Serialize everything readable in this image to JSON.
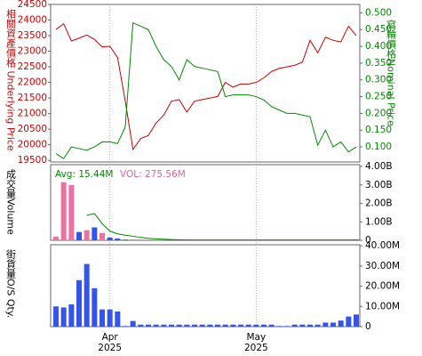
{
  "chart_data": [
    {
      "type": "line",
      "y_label": "相關資產價格 Underlying Price",
      "y2_label": "窩輪價格Nominal Price",
      "ylim": [
        19450,
        24500
      ],
      "yticks": [
        19500,
        20000,
        20500,
        21000,
        21500,
        22000,
        22500,
        23000,
        23500,
        24000,
        24500
      ],
      "y2lim": [
        0.055,
        0.525
      ],
      "y2ticks": [
        {
          "value": 0.1,
          "label": "0.100"
        },
        {
          "value": 0.15,
          "label": "0.150"
        },
        {
          "value": 0.2,
          "label": "0.200"
        },
        {
          "value": 0.25,
          "label": "0.250"
        },
        {
          "value": 0.3,
          "label": "0.300"
        },
        {
          "value": 0.35,
          "label": "0.350"
        },
        {
          "value": 0.4,
          "label": "0.400"
        },
        {
          "value": 0.45,
          "label": "0.450"
        },
        {
          "value": 0.5,
          "label": "0.500"
        }
      ],
      "ycolor": "#cc0000",
      "y2color": "#008800",
      "series": [
        {
          "color": "#cc0000",
          "values": [
            23700,
            23880,
            23330,
            23420,
            23520,
            23380,
            23140,
            23160,
            22800,
            21400,
            19850,
            20200,
            20300,
            20700,
            20950,
            21400,
            21450,
            21050,
            21400,
            21450,
            21500,
            21550,
            22000,
            21850,
            21950,
            21950,
            22000,
            22150,
            22350,
            22450,
            22500,
            22550,
            22650,
            23350,
            22950,
            23450,
            23350,
            23300,
            23800,
            23500
          ]
        },
        {
          "color": "#008800",
          "axis": "y2",
          "values": [
            0.08,
            0.065,
            0.1,
            0.095,
            0.09,
            0.1,
            0.115,
            0.115,
            0.11,
            0.16,
            0.47,
            0.46,
            0.45,
            0.4,
            0.36,
            0.34,
            0.3,
            0.36,
            0.34,
            0.335,
            0.33,
            0.325,
            0.25,
            0.255,
            0.255,
            0.255,
            0.25,
            0.24,
            0.22,
            0.21,
            0.2,
            0.2,
            0.195,
            0.19,
            0.105,
            0.15,
            0.1,
            0.115,
            0.085,
            0.1
          ]
        }
      ]
    },
    {
      "type": "bar",
      "y_label": "成交量Volume",
      "annotations": [
        {
          "text": "Avg: 15.44M",
          "color": "#008800"
        },
        {
          "text": "VOL: 275.56M",
          "color": "#e060a0"
        }
      ],
      "ylim": [
        0,
        4100000000
      ],
      "y2ticks": [
        0,
        {
          "value": 1000000000,
          "label": "1.00B"
        },
        {
          "value": 2000000000,
          "label": "2.00B"
        },
        {
          "value": 3000000000,
          "label": "3.00B"
        },
        {
          "value": 4000000000,
          "label": "4.00B"
        }
      ],
      "values": [
        200000000,
        3150000000,
        3000000000,
        450000000,
        550000000,
        700000000,
        400000000,
        150000000,
        100000000,
        40000000,
        30000000,
        20000000,
        10000000,
        10000000,
        10000000,
        10000000,
        10000000,
        10000000,
        10000000,
        10000000,
        10000000,
        10000000,
        10000000,
        10000000,
        10000000,
        10000000,
        10000000,
        10000000,
        10000000,
        10000000,
        10000000,
        10000000,
        10000000,
        10000000,
        10000000,
        10000000,
        10000000,
        10000000,
        10000000,
        50000000
      ],
      "colors": [
        "#f070a0",
        "#f070a0",
        "#f070a0",
        "#3355ee",
        "#f070a0",
        "#3355ee",
        "#f070a0",
        "#3355ee",
        "#3355ee",
        "#3355ee",
        "#3355ee",
        "#3355ee",
        "#3355ee",
        "#3355ee",
        "#3355ee",
        "#3355ee",
        "#3355ee",
        "#3355ee",
        "#3355ee",
        "#3355ee",
        "#3355ee",
        "#3355ee",
        "#3355ee",
        "#3355ee",
        "#3355ee",
        "#3355ee",
        "#3355ee",
        "#3355ee",
        "#3355ee",
        "#3355ee",
        "#3355ee",
        "#3355ee",
        "#3355ee",
        "#3355ee",
        "#3355ee",
        "#3355ee",
        "#3355ee",
        "#3355ee",
        "#3355ee",
        "#3355ee"
      ],
      "line": {
        "color": "#008800",
        "values": [
          null,
          null,
          null,
          null,
          1350000000,
          1450000000,
          900000000,
          500000000,
          350000000,
          280000000,
          220000000,
          160000000,
          110000000,
          80000000,
          60000000,
          40000000,
          30000000,
          20000000,
          20000000,
          20000000,
          20000000,
          20000000,
          20000000,
          20000000,
          20000000,
          20000000,
          20000000,
          20000000,
          20000000,
          20000000,
          20000000,
          20000000,
          20000000,
          20000000,
          20000000,
          20000000,
          20000000,
          20000000,
          20000000,
          20000000
        ]
      }
    },
    {
      "type": "bar",
      "y_label": "街貨量O/S Qty.",
      "ylim": [
        0,
        40500000
      ],
      "y2ticks": [
        0,
        {
          "value": 10000000,
          "label": "10.00M"
        },
        {
          "value": 20000000,
          "label": "20.00M"
        },
        {
          "value": 30000000,
          "label": "30.00M"
        },
        {
          "value": 40000000,
          "label": "40.00M"
        }
      ],
      "color": "#3355ee",
      "values": [
        10000000,
        9500000,
        11000000,
        23000000,
        31000000,
        19000000,
        8500000,
        8500000,
        7500000,
        300000,
        2800000,
        1000000,
        1000000,
        1000000,
        1000000,
        1000000,
        1000000,
        1000000,
        1000000,
        1000000,
        1000000,
        1000000,
        1000000,
        1000000,
        1000000,
        1000000,
        1000000,
        1000000,
        1000000,
        300000,
        300000,
        1000000,
        1000000,
        1000000,
        1000000,
        2000000,
        2000000,
        3000000,
        5000000,
        6000000
      ],
      "categories": [
        null,
        null,
        null,
        null,
        null,
        null,
        null,
        "Apr 2025",
        null,
        null,
        null,
        null,
        null,
        null,
        null,
        null,
        null,
        null,
        null,
        null,
        null,
        null,
        null,
        null,
        null,
        null,
        "May 2025",
        null,
        null,
        null,
        null,
        null,
        null,
        null,
        null,
        null,
        null,
        null,
        null,
        null
      ]
    }
  ]
}
